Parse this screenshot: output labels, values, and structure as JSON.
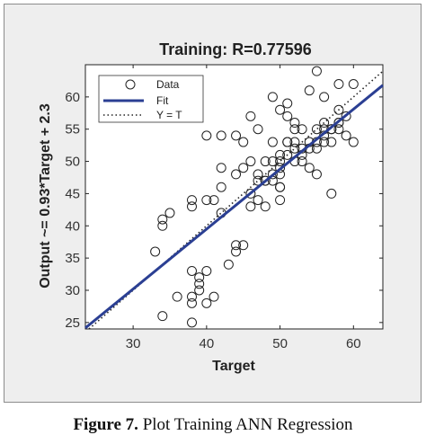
{
  "caption": {
    "label": "Figure 7.",
    "text": " Plot Training ANN Regression"
  },
  "chart_data": {
    "type": "scatter",
    "title": "Training: R=0.77596",
    "xlabel": "Target",
    "ylabel": "Output ~= 0.93*Target + 2.3",
    "xlim": [
      23.5,
      64
    ],
    "ylim": [
      24,
      65
    ],
    "xticks": [
      30,
      40,
      50,
      60
    ],
    "yticks": [
      25,
      30,
      35,
      40,
      45,
      50,
      55,
      60
    ],
    "grid": false,
    "legend": {
      "position": "top-left",
      "entries": [
        "Data",
        "Fit",
        "Y = T"
      ]
    },
    "fit": {
      "slope": 0.93,
      "intercept": 2.3
    },
    "colors": {
      "fit": "#2b3f93",
      "data": "#222222",
      "identity": "#222222"
    },
    "series": [
      {
        "name": "Data",
        "x": [
          33,
          34,
          34,
          35,
          38,
          38,
          38,
          38,
          39,
          39,
          39,
          38,
          40,
          40,
          40,
          41,
          41,
          42,
          40,
          36,
          34,
          38,
          42,
          44,
          44,
          45,
          45,
          44,
          44,
          43,
          42,
          46,
          46,
          46,
          45,
          47,
          47,
          48,
          48,
          48,
          49,
          49,
          50,
          50,
          50,
          50,
          50,
          51,
          51,
          52,
          52,
          53,
          53,
          54,
          54,
          55,
          55,
          55,
          56,
          56,
          56,
          57,
          57,
          57,
          58,
          58,
          58,
          59,
          59,
          60,
          60,
          48,
          46,
          42,
          47,
          49,
          50,
          50,
          51,
          52,
          53,
          54,
          55,
          56,
          57,
          58,
          52,
          53,
          54,
          55,
          51,
          49,
          49,
          47,
          50,
          51,
          52,
          56,
          58
        ],
        "y": [
          36,
          26,
          41,
          42,
          25,
          28,
          29,
          33,
          30,
          31,
          32,
          44,
          28,
          33,
          44,
          44,
          29,
          54,
          54,
          29,
          40,
          43,
          49,
          54,
          48,
          53,
          49,
          36,
          37,
          34,
          42,
          45,
          50,
          43,
          37,
          44,
          47,
          47,
          50,
          43,
          47,
          50,
          44,
          46,
          49,
          51,
          58,
          53,
          57,
          52,
          55,
          50,
          55,
          49,
          53,
          48,
          53,
          55,
          54,
          56,
          60,
          45,
          53,
          55,
          56,
          58,
          62,
          54,
          57,
          53,
          62,
          47,
          57,
          46,
          48,
          48,
          48,
          50,
          51,
          50,
          52,
          52,
          52,
          55,
          55,
          56,
          53,
          51,
          61,
          64,
          59,
          53,
          60,
          55,
          46,
          53,
          56,
          53,
          55
        ]
      }
    ]
  }
}
